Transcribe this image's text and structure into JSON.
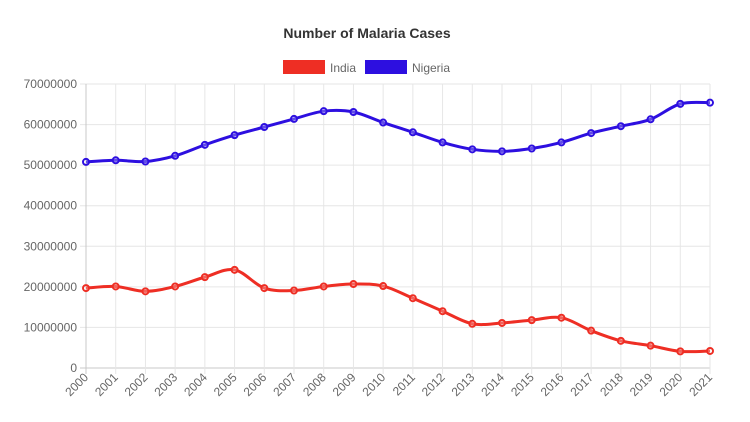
{
  "chart_data": {
    "type": "line",
    "title": "Number of Malaria Cases",
    "xlabel": "",
    "ylabel": "",
    "x": [
      "2000",
      "2001",
      "2002",
      "2003",
      "2004",
      "2005",
      "2006",
      "2007",
      "2008",
      "2009",
      "2010",
      "2011",
      "2012",
      "2013",
      "2014",
      "2015",
      "2016",
      "2017",
      "2018",
      "2019",
      "2020",
      "2021"
    ],
    "series": [
      {
        "name": "India",
        "color": "#ee2e24",
        "values": [
          19700000,
          20100000,
          18900000,
          20100000,
          22400000,
          24200000,
          19700000,
          19100000,
          20100000,
          20700000,
          20200000,
          17200000,
          14000000,
          10900000,
          11100000,
          11800000,
          12400000,
          9200000,
          6700000,
          5500000,
          4100000,
          4200000
        ]
      },
      {
        "name": "Nigeria",
        "color": "#2d0fe0",
        "values": [
          50800000,
          51200000,
          50900000,
          52300000,
          55000000,
          57400000,
          59400000,
          61400000,
          63300000,
          63100000,
          60500000,
          58100000,
          55600000,
          53900000,
          53400000,
          54100000,
          55600000,
          57900000,
          59600000,
          61300000,
          65100000,
          65400000
        ]
      }
    ],
    "ylim": [
      0,
      70000000
    ],
    "yticks": [
      "0",
      "10000000",
      "20000000",
      "30000000",
      "40000000",
      "50000000",
      "60000000",
      "70000000"
    ],
    "grid": true,
    "legend_position": "top"
  }
}
